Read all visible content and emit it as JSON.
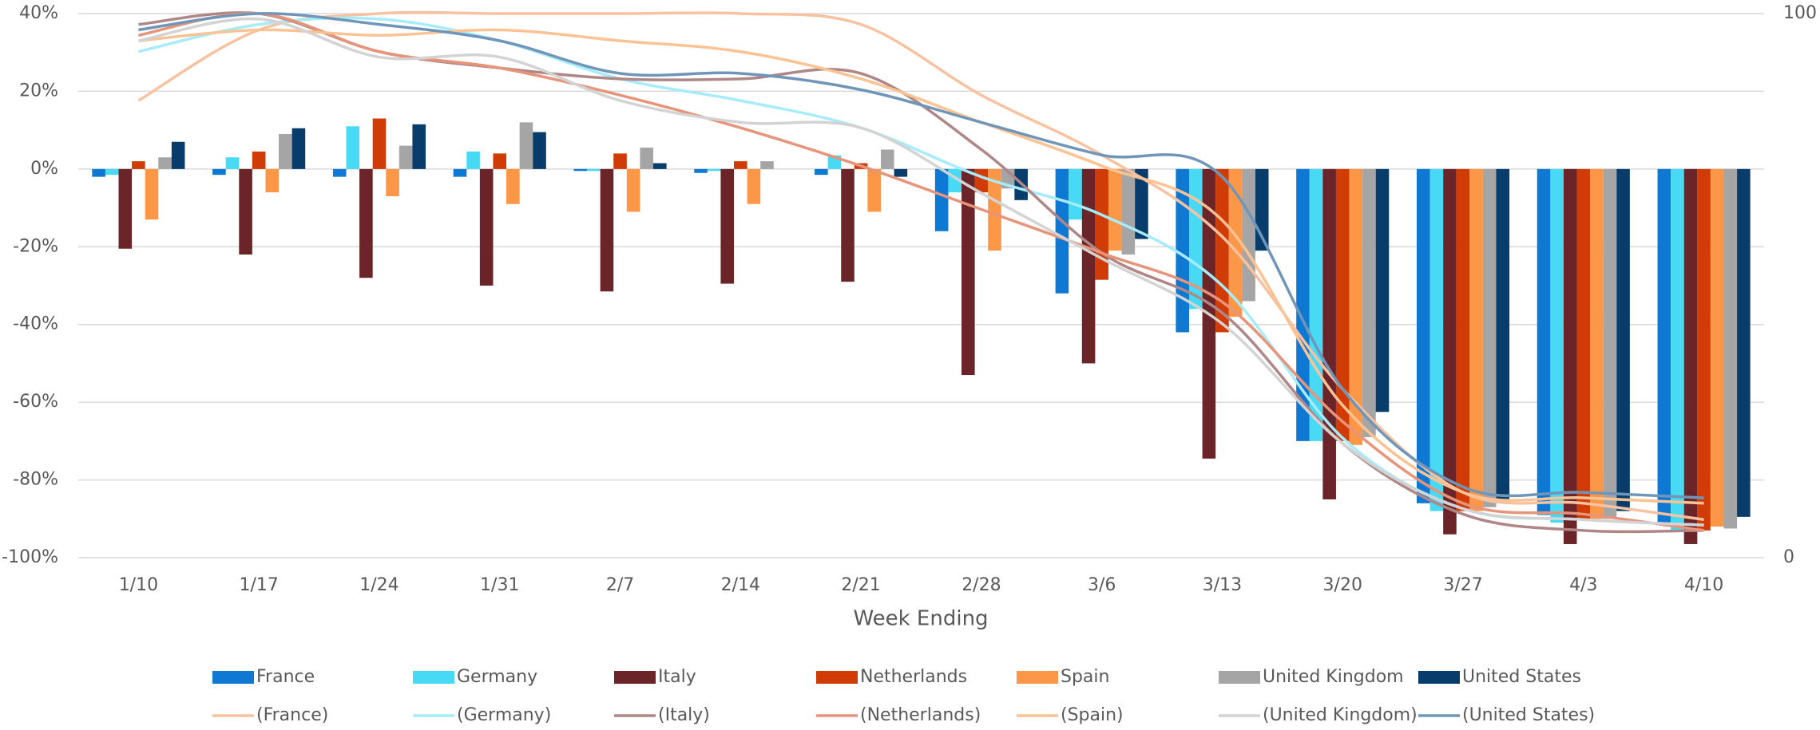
{
  "chart_data": {
    "type": "bar",
    "xlabel": "Week Ending",
    "categories": [
      "1/10",
      "1/17",
      "1/24",
      "1/31",
      "2/7",
      "2/14",
      "2/21",
      "2/28",
      "3/6",
      "3/13",
      "3/20",
      "3/27",
      "4/3",
      "4/10"
    ],
    "ylim": [
      -100,
      40
    ],
    "yticks": [
      {
        "value": -100,
        "label": "-100%"
      },
      {
        "value": -80,
        "label": "-80%"
      },
      {
        "value": -60,
        "label": "-60%"
      },
      {
        "value": -40,
        "label": "-40%"
      },
      {
        "value": -20,
        "label": "-20%"
      },
      {
        "value": 0,
        "label": "0%"
      },
      {
        "value": 20,
        "label": "20%"
      },
      {
        "value": 40,
        "label": "40%"
      }
    ],
    "y2lim": [
      0,
      100
    ],
    "y2ticks": [
      0,
      100
    ],
    "grid": true,
    "series": [
      {
        "name": "France",
        "type": "bar",
        "color": "#0f78d3",
        "values": [
          -2,
          -1.5,
          -2,
          -2,
          -0.5,
          -1,
          -1.5,
          -16,
          -32,
          -42,
          -70,
          -86,
          -89,
          -91
        ]
      },
      {
        "name": "Germany",
        "type": "bar",
        "color": "#48d9f5",
        "values": [
          -1.5,
          3,
          11,
          4.5,
          -0.5,
          -0.5,
          3.5,
          -6,
          -13,
          -36,
          -70,
          -88,
          -91,
          -93
        ]
      },
      {
        "name": "Italy",
        "type": "bar",
        "color": "#6b2529",
        "values": [
          -20.5,
          -22,
          -28,
          -30,
          -31.5,
          -29.5,
          -29,
          -53,
          -50,
          -74.5,
          -85,
          -94,
          -96.5,
          -96.5
        ]
      },
      {
        "name": "Netherlands",
        "type": "bar",
        "color": "#d13b06",
        "values": [
          2,
          4.5,
          13,
          4,
          4,
          2,
          1.5,
          -6,
          -28.5,
          -42,
          -70,
          -88,
          -90,
          -93
        ]
      },
      {
        "name": "Spain",
        "type": "bar",
        "color": "#fb9746",
        "values": [
          -13,
          -6,
          -7,
          -9,
          -11,
          -9,
          -11,
          -21,
          -21,
          -38,
          -71,
          -88,
          -90,
          -92
        ]
      },
      {
        "name": "United Kingdom",
        "type": "bar",
        "color": "#a5a5a5",
        "values": [
          3,
          9,
          6,
          12,
          5.5,
          2,
          5,
          -5,
          -22,
          -34,
          -69,
          -87,
          -90,
          -92.5
        ]
      },
      {
        "name": "United States",
        "type": "bar",
        "color": "#083d6b",
        "values": [
          7,
          10.5,
          11.5,
          9.5,
          1.5,
          0,
          -2,
          -8,
          -18,
          -21,
          -62.5,
          -86,
          -88,
          -89.5
        ]
      },
      {
        "name": "(France)",
        "type": "line",
        "axis": "y2",
        "color": "#f8c2a0",
        "values": [
          84,
          97,
          100,
          100,
          100,
          100,
          98,
          85,
          74,
          59,
          31,
          12,
          10,
          7
        ]
      },
      {
        "name": "(Germany)",
        "type": "line",
        "axis": "y2",
        "color": "#a6ecfa",
        "values": [
          93,
          98,
          99,
          95,
          88,
          84,
          79,
          70,
          63,
          50,
          22,
          9,
          7,
          6
        ]
      },
      {
        "name": "(Italy)",
        "type": "line",
        "axis": "y2",
        "color": "#b08787",
        "values": [
          98,
          100,
          93,
          90,
          88,
          88,
          89,
          75,
          56,
          45,
          21,
          8,
          5,
          5
        ]
      },
      {
        "name": "(Netherlands)",
        "type": "line",
        "axis": "y2",
        "color": "#e8947a",
        "values": [
          96,
          100,
          93,
          90,
          85,
          79,
          72,
          64,
          56,
          47,
          25,
          10,
          8,
          5
        ]
      },
      {
        "name": "(Spain)",
        "type": "line",
        "axis": "y2",
        "color": "#fbc394",
        "values": [
          95,
          97,
          96,
          97,
          95,
          93,
          88,
          80,
          72,
          62,
          28,
          12,
          11,
          10
        ]
      },
      {
        "name": "(United Kingdom)",
        "type": "line",
        "axis": "y2",
        "color": "#d3d3d3",
        "values": [
          95,
          99,
          92,
          92,
          84,
          80,
          79,
          67,
          55,
          43,
          21,
          9,
          7,
          6
        ]
      },
      {
        "name": "(United States)",
        "type": "line",
        "axis": "y2",
        "color": "#6f96b8",
        "values": [
          97,
          100,
          98,
          95,
          89,
          89,
          86,
          80,
          74,
          70,
          31,
          13,
          12,
          11
        ]
      }
    ]
  }
}
